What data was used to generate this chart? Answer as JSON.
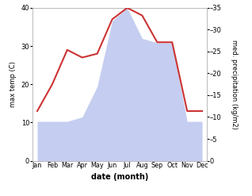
{
  "months": [
    "Jan",
    "Feb",
    "Mar",
    "Apr",
    "May",
    "Jun",
    "Jul",
    "Aug",
    "Sep",
    "Oct",
    "Nov",
    "Dec"
  ],
  "temperature": [
    13,
    20,
    29,
    27,
    28,
    37,
    40,
    38,
    31,
    31,
    13,
    13
  ],
  "precipitation": [
    9,
    9,
    9,
    10,
    17,
    32,
    35,
    28,
    27,
    27,
    9,
    9
  ],
  "temp_color": "#cc3333",
  "precip_color": "#c5cef0",
  "temp_ylim": [
    0,
    40
  ],
  "precip_ylim": [
    0,
    35
  ],
  "temp_yticks": [
    0,
    10,
    20,
    30,
    40
  ],
  "precip_yticks": [
    0,
    5,
    10,
    15,
    20,
    25,
    30,
    35
  ],
  "ylabel_left": "max temp (C)",
  "ylabel_right": "med. precipitation (kg/m2)",
  "xlabel": "date (month)",
  "background_color": "#ffffff"
}
